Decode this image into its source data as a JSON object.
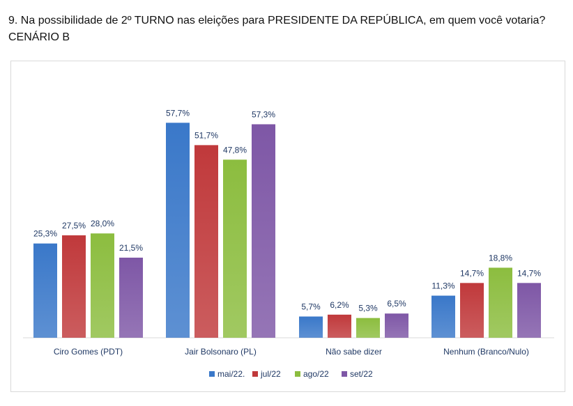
{
  "header": {
    "title_line1": "9. Na possibilidade de 2º TURNO nas eleições para PRESIDENTE DA REPÚBLICA, em quem você votaria?",
    "title_line2": "CENÁRIO B"
  },
  "chart_data": {
    "type": "bar",
    "categories": [
      "Ciro Gomes (PDT)",
      "Jair Bolsonaro (PL)",
      "Não sabe dizer",
      "Nenhum (Branco/Nulo)"
    ],
    "series": [
      {
        "name": "mai/22.",
        "color": "#3a78c9",
        "values": [
          25.3,
          57.7,
          5.7,
          11.3
        ],
        "labels": [
          "25,3%",
          "57,7%",
          "5,7%",
          "11,3%"
        ]
      },
      {
        "name": "jul/22",
        "color": "#c0393b",
        "values": [
          27.5,
          51.7,
          6.2,
          14.7
        ],
        "labels": [
          "27,5%",
          "51,7%",
          "6,2%",
          "14,7%"
        ]
      },
      {
        "name": "ago/22",
        "color": "#8cbd3f",
        "values": [
          28.0,
          47.8,
          5.3,
          18.8
        ],
        "labels": [
          "28,0%",
          "47,8%",
          "5,3%",
          "18,8%"
        ]
      },
      {
        "name": "set/22",
        "color": "#7e57a6",
        "values": [
          21.5,
          57.3,
          6.5,
          14.7
        ],
        "labels": [
          "21,5%",
          "57,3%",
          "6,5%",
          "14,7%"
        ]
      }
    ],
    "ylim": [
      0,
      60
    ],
    "grid": false,
    "legend_position": "bottom"
  }
}
